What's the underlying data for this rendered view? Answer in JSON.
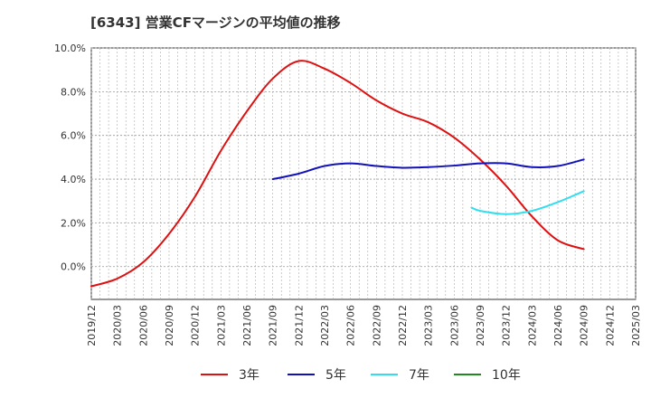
{
  "chart_data": {
    "type": "line",
    "title": "[6343]  営業CFマージンの平均値の推移",
    "xlabel": "",
    "ylabel": "",
    "ylim": [
      -1.5,
      10.0
    ],
    "y_ticks": [
      "10.0%",
      "8.0%",
      "6.0%",
      "4.0%",
      "2.0%",
      "0.0%"
    ],
    "y_tick_values": [
      10,
      8,
      6,
      4,
      2,
      0
    ],
    "x_ticks": [
      "2019/12",
      "2020/03",
      "2020/06",
      "2020/09",
      "2020/12",
      "2021/03",
      "2021/06",
      "2021/09",
      "2021/12",
      "2022/03",
      "2022/06",
      "2022/09",
      "2022/12",
      "2023/03",
      "2023/06",
      "2023/09",
      "2023/12",
      "2024/03",
      "2024/06",
      "2024/09",
      "2024/12",
      "2025/03"
    ],
    "grid": true,
    "legend_position": "bottom",
    "series": [
      {
        "name": "3年",
        "color": "#dd1111",
        "points": [
          [
            "2019/12",
            -0.9
          ],
          [
            "2020/03",
            -0.55
          ],
          [
            "2020/06",
            0.2
          ],
          [
            "2020/09",
            1.5
          ],
          [
            "2020/12",
            3.2
          ],
          [
            "2021/03",
            5.3
          ],
          [
            "2021/06",
            7.1
          ],
          [
            "2021/09",
            8.6
          ],
          [
            "2021/12",
            9.4
          ],
          [
            "2022/03",
            9.05
          ],
          [
            "2022/06",
            8.4
          ],
          [
            "2022/09",
            7.6
          ],
          [
            "2022/12",
            7.0
          ],
          [
            "2023/03",
            6.6
          ],
          [
            "2023/06",
            5.9
          ],
          [
            "2023/09",
            4.9
          ],
          [
            "2023/12",
            3.7
          ],
          [
            "2024/03",
            2.3
          ],
          [
            "2024/06",
            1.2
          ],
          [
            "2024/09",
            0.8
          ]
        ]
      },
      {
        "name": "5年",
        "color": "#1111bb",
        "points": [
          [
            "2021/09",
            4.0
          ],
          [
            "2021/12",
            4.25
          ],
          [
            "2022/03",
            4.6
          ],
          [
            "2022/06",
            4.72
          ],
          [
            "2022/09",
            4.6
          ],
          [
            "2022/12",
            4.52
          ],
          [
            "2023/03",
            4.55
          ],
          [
            "2023/06",
            4.62
          ],
          [
            "2023/09",
            4.72
          ],
          [
            "2023/12",
            4.72
          ],
          [
            "2024/03",
            4.55
          ],
          [
            "2024/06",
            4.6
          ],
          [
            "2024/09",
            4.9
          ]
        ]
      },
      {
        "name": "7年",
        "color": "#33ddee",
        "points": [
          [
            "2023/08",
            2.7
          ],
          [
            "2023/09",
            2.55
          ],
          [
            "2023/12",
            2.4
          ],
          [
            "2024/03",
            2.55
          ],
          [
            "2024/06",
            2.95
          ],
          [
            "2024/09",
            3.45
          ]
        ]
      },
      {
        "name": "10年",
        "color": "#228822",
        "points": []
      }
    ]
  }
}
